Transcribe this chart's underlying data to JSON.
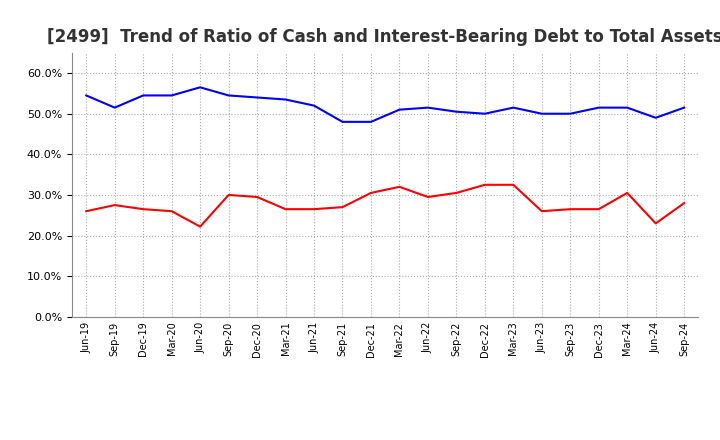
{
  "title": "[2499]  Trend of Ratio of Cash and Interest-Bearing Debt to Total Assets",
  "labels": [
    "Jun-19",
    "Sep-19",
    "Dec-19",
    "Mar-20",
    "Jun-20",
    "Sep-20",
    "Dec-20",
    "Mar-21",
    "Jun-21",
    "Sep-21",
    "Dec-21",
    "Mar-22",
    "Jun-22",
    "Sep-22",
    "Dec-22",
    "Mar-23",
    "Jun-23",
    "Sep-23",
    "Dec-23",
    "Mar-24",
    "Jun-24",
    "Sep-24"
  ],
  "cash": [
    26.0,
    27.5,
    26.5,
    26.0,
    22.2,
    30.0,
    29.5,
    26.5,
    26.5,
    27.0,
    30.5,
    32.0,
    29.5,
    30.5,
    32.5,
    32.5,
    26.0,
    26.5,
    26.5,
    30.5,
    23.0,
    28.0
  ],
  "interest_bearing_debt": [
    54.5,
    51.5,
    54.5,
    54.5,
    56.5,
    54.5,
    54.0,
    53.5,
    52.0,
    48.0,
    48.0,
    51.0,
    51.5,
    50.5,
    50.0,
    51.5,
    50.0,
    50.0,
    51.5,
    51.5,
    49.0,
    51.5
  ],
  "cash_color": "#ff0000",
  "debt_color": "#0000ff",
  "ylim": [
    0,
    65
  ],
  "yticks": [
    0,
    10,
    20,
    30,
    40,
    50,
    60
  ],
  "background_color": "#ffffff",
  "grid_color": "#aaaaaa",
  "title_fontsize": 12
}
